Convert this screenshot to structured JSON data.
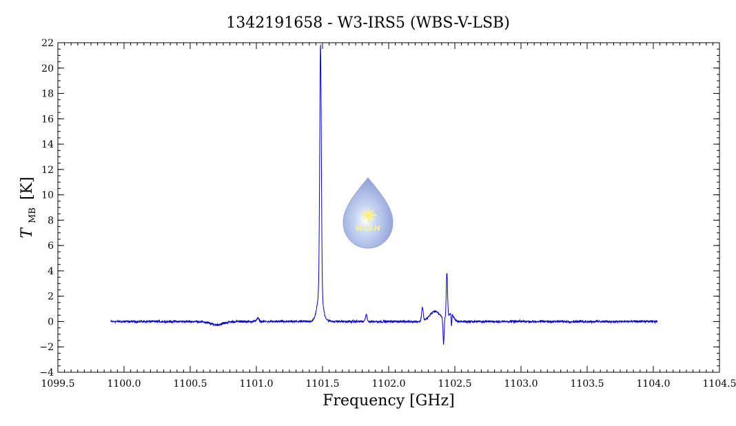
{
  "chart_data": {
    "type": "line",
    "title": "1342191658 - W3-IRS5 (WBS-V-LSB)",
    "xlabel": "Frequency [GHz]",
    "ylabel_main": "T",
    "ylabel_sub": "MB",
    "ylabel_unit": "[K]",
    "xlim": [
      1099.5,
      1104.5
    ],
    "ylim": [
      -4,
      22
    ],
    "x_ticks": [
      1099.5,
      1100.0,
      1100.5,
      1101.0,
      1101.5,
      1102.0,
      1102.5,
      1103.0,
      1103.5,
      1104.0,
      1104.5
    ],
    "x_tick_labels": [
      "1099.5",
      "1100.0",
      "1100.5",
      "1101.0",
      "1101.5",
      "1102.0",
      "1102.5",
      "1103.0",
      "1103.5",
      "1104.0",
      "1104.5"
    ],
    "y_ticks": [
      -4,
      -2,
      0,
      2,
      4,
      6,
      8,
      10,
      12,
      14,
      16,
      18,
      20,
      22
    ],
    "y_tick_labels": [
      "−4",
      "−2",
      "0",
      "2",
      "4",
      "6",
      "8",
      "10",
      "12",
      "14",
      "16",
      "18",
      "20",
      "22"
    ],
    "grid": false,
    "series": [
      {
        "color": "#0000cc",
        "x_range": [
          1099.9,
          1104.03
        ],
        "baseline_noise": 0.12,
        "features": [
          {
            "x": 1100.7,
            "amp": -0.25,
            "width": 0.05
          },
          {
            "x": 1101.01,
            "amp": 0.25,
            "width": 0.01
          },
          {
            "x": 1101.485,
            "amp": 19.5,
            "width": 0.006
          },
          {
            "x": 1101.48,
            "amp": 2.0,
            "width": 0.02
          },
          {
            "x": 1101.83,
            "amp": 0.55,
            "width": 0.006
          },
          {
            "x": 1102.255,
            "amp": 1.1,
            "width": 0.006
          },
          {
            "x": 1102.35,
            "amp": 0.8,
            "width": 0.04
          },
          {
            "x": 1102.415,
            "amp": -2.0,
            "width": 0.004
          },
          {
            "x": 1102.44,
            "amp": 3.6,
            "width": 0.005
          },
          {
            "x": 1102.47,
            "amp": 0.6,
            "width": 0.02
          },
          {
            "x": 1102.475,
            "amp": -1.0,
            "width": 0.0025
          }
        ]
      }
    ]
  },
  "logo": {
    "text": "WISH",
    "fill_color": "#9aaee0",
    "star_color": "#fff27a"
  }
}
